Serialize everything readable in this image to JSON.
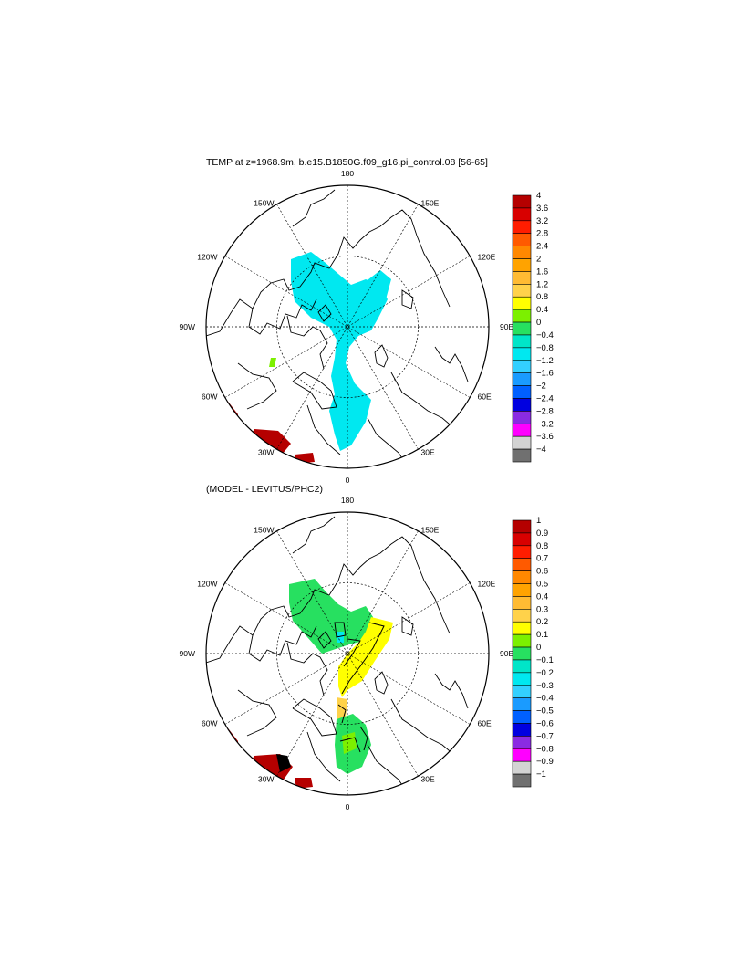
{
  "panels": [
    {
      "title": "TEMP at z=1968.9m, b.e15.B1850G.f09_g16.pi_control.08 [56-65]",
      "longitude_labels": [
        "180",
        "150E",
        "120E",
        "90E",
        "60E",
        "30E",
        "0",
        "30W",
        "60W",
        "90W",
        "120W",
        "150W"
      ],
      "colorbar": {
        "labels": [
          "4",
          "3.6",
          "3.2",
          "2.8",
          "2.4",
          "2",
          "1.6",
          "1.2",
          "0.8",
          "0.4",
          "0",
          "−0.4",
          "−0.8",
          "−1.2",
          "−1.6",
          "−2",
          "−2.4",
          "−2.8",
          "−3.2",
          "−3.6",
          "−4"
        ],
        "colors": [
          "#b50000",
          "#d80000",
          "#ff1d00",
          "#ff5a00",
          "#ff8800",
          "#ffa300",
          "#ffbb33",
          "#ffd24a",
          "#ffff00",
          "#7cf000",
          "#27e060",
          "#00e5c8",
          "#00e8f0",
          "#33d0ff",
          "#1a9bff",
          "#0060ff",
          "#0000e0",
          "#8a2be2",
          "#ff00ff",
          "#d3d3d3",
          "#707070"
        ]
      }
    },
    {
      "title": "(MODEL - LEVITUS/PHC2)",
      "longitude_labels": [
        "180",
        "150E",
        "120E",
        "90E",
        "60E",
        "30E",
        "0",
        "30W",
        "60W",
        "90W",
        "120W",
        "150W"
      ],
      "colorbar": {
        "labels": [
          "1",
          "0.9",
          "0.8",
          "0.7",
          "0.6",
          "0.5",
          "0.4",
          "0.3",
          "0.2",
          "0.1",
          "0",
          "−0.1",
          "−0.2",
          "−0.3",
          "−0.4",
          "−0.5",
          "−0.6",
          "−0.7",
          "−0.8",
          "−0.9",
          "−1"
        ],
        "colors": [
          "#b50000",
          "#d80000",
          "#ff1d00",
          "#ff5a00",
          "#ff8800",
          "#ffa300",
          "#ffbb33",
          "#ffd24a",
          "#ffff00",
          "#7cf000",
          "#27e060",
          "#00e5c8",
          "#00e8f0",
          "#33d0ff",
          "#1a9bff",
          "#0060ff",
          "#0000e0",
          "#8a2be2",
          "#ff00ff",
          "#d3d3d3",
          "#707070"
        ]
      }
    }
  ]
}
